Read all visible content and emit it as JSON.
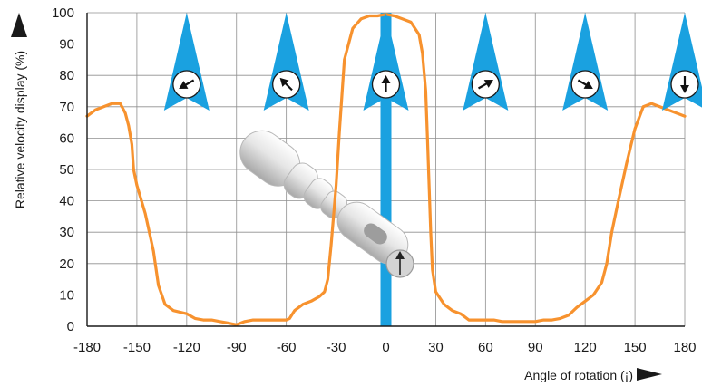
{
  "chart_data": {
    "type": "line",
    "title": "",
    "xlabel": "Angle of rotation (¡)",
    "ylabel": "Relative velocity display (%)",
    "xlim": [
      -180,
      180
    ],
    "ylim": [
      0,
      100
    ],
    "x_ticks": [
      "-180",
      "-150",
      "-120",
      "-90",
      "-60",
      "-30",
      "0",
      "30",
      "60",
      "90",
      "120",
      "150",
      "180"
    ],
    "y_ticks": [
      "0",
      "10",
      "20",
      "30",
      "40",
      "50",
      "60",
      "70",
      "80",
      "90",
      "100"
    ],
    "grid": true,
    "series": [
      {
        "name": "",
        "color": "#f7922e",
        "x": [
          -180,
          -175,
          -170,
          -165,
          -160,
          -157,
          -155,
          -153,
          -152,
          -150,
          -145,
          -140,
          -137,
          -133,
          -128,
          -120,
          -115,
          -110,
          -105,
          -100,
          -95,
          -90,
          -85,
          -80,
          -75,
          -70,
          -65,
          -60,
          -58,
          -55,
          -50,
          -45,
          -40,
          -37,
          -35,
          -33,
          -30,
          -28,
          -25,
          -20,
          -15,
          -10,
          -5,
          0,
          5,
          10,
          15,
          20,
          22,
          24,
          25,
          26,
          27,
          28,
          30,
          35,
          40,
          45,
          50,
          55,
          60,
          65,
          70,
          75,
          80,
          85,
          90,
          95,
          100,
          105,
          110,
          115,
          120,
          125,
          130,
          133,
          136,
          140,
          145,
          150,
          155,
          160,
          165,
          170,
          175,
          180
        ],
        "y": [
          67,
          69,
          70,
          71,
          71,
          68,
          64,
          58,
          50,
          45,
          36,
          24,
          13,
          7,
          5,
          4,
          2.5,
          2,
          2,
          1.5,
          1,
          0.5,
          1.5,
          2,
          2,
          2,
          2,
          2,
          2.5,
          5,
          7,
          8,
          9.5,
          11,
          15,
          26,
          45,
          62,
          85,
          95,
          98,
          99,
          99,
          99.5,
          99,
          98,
          97,
          93,
          87,
          75,
          60,
          45,
          30,
          18,
          11,
          7,
          5,
          4,
          2,
          2,
          2,
          2,
          1.5,
          1.5,
          1.5,
          1.5,
          1.5,
          2,
          2,
          2.5,
          3.5,
          6,
          8,
          10,
          14,
          20,
          30,
          40,
          52,
          63,
          70,
          71,
          70,
          69,
          68,
          67
        ]
      }
    ],
    "highlight_bar": {
      "x": 0,
      "color": "#1aa1e0",
      "value": 100
    },
    "probe_markers": [
      {
        "x": -120,
        "arrow_angle": 240,
        "icon": "arrow-down-left-icon"
      },
      {
        "x": -60,
        "arrow_angle": 315,
        "icon": "arrow-up-left-icon"
      },
      {
        "x": 0,
        "arrow_angle": 0,
        "icon": "arrow-up-icon"
      },
      {
        "x": 60,
        "arrow_angle": 60,
        "icon": "arrow-up-right-icon"
      },
      {
        "x": 120,
        "arrow_angle": 120,
        "icon": "arrow-down-right-icon"
      },
      {
        "x": 180,
        "arrow_angle": 180,
        "icon": "arrow-down-icon"
      }
    ]
  }
}
